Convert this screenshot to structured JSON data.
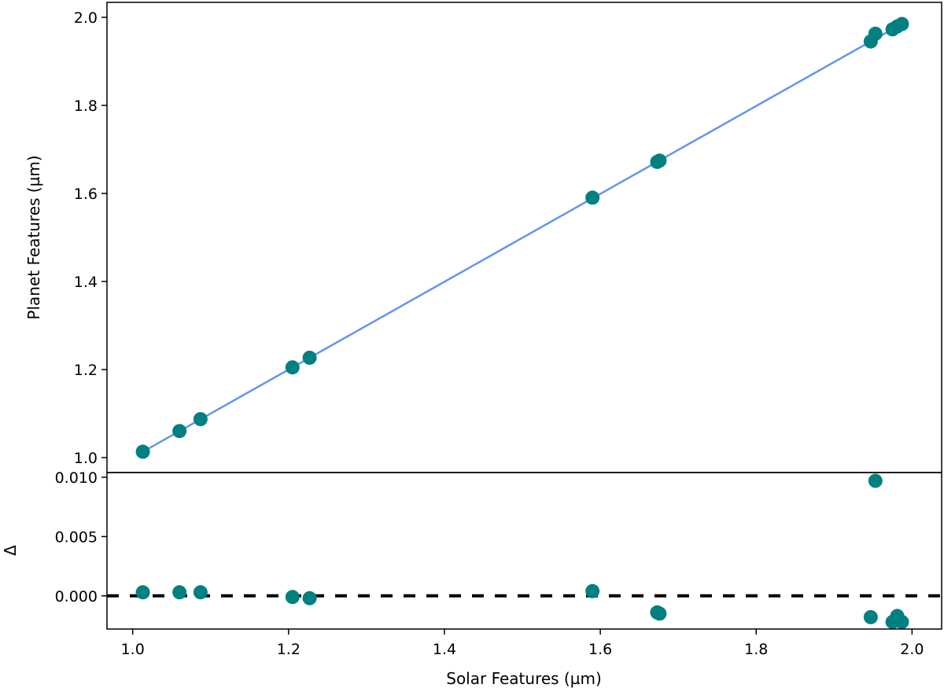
{
  "chart_data": [
    {
      "type": "scatter",
      "panel": "top",
      "xlabel": "",
      "ylabel": "Planet Features (µm)",
      "xlim": [
        0.967,
        2.038
      ],
      "ylim": [
        0.966,
        2.034
      ],
      "yticks": [
        1.0,
        1.2,
        1.4,
        1.6,
        1.8,
        2.0
      ],
      "ytick_labels": [
        "1.0",
        "1.2",
        "1.4",
        "1.6",
        "1.8",
        "2.0"
      ],
      "grid": false,
      "points": {
        "x": [
          1.013,
          1.06,
          1.087,
          1.205,
          1.227,
          1.59,
          1.673,
          1.676,
          1.947,
          1.953,
          1.975,
          1.981,
          1.987
        ],
        "y": [
          1.0133,
          1.0603,
          1.0873,
          1.2049,
          1.2268,
          1.5904,
          1.6716,
          1.6745,
          1.9452,
          1.9627,
          1.9728,
          1.9793,
          1.9848
        ],
        "color": "#008080"
      },
      "fit_line": {
        "x": [
          1.013,
          1.987
        ],
        "y": [
          1.0132,
          1.9852
        ],
        "color": "#6495ED"
      }
    },
    {
      "type": "scatter",
      "panel": "bottom",
      "xlabel": "Solar Features (µm)",
      "ylabel": "Δ",
      "xlim": [
        0.967,
        2.038
      ],
      "ylim": [
        -0.0028,
        0.0104
      ],
      "xticks": [
        1.0,
        1.2,
        1.4,
        1.6,
        1.8,
        2.0
      ],
      "xtick_labels": [
        "1.0",
        "1.2",
        "1.4",
        "1.6",
        "1.8",
        "2.0"
      ],
      "yticks": [
        0.0,
        0.005,
        0.01
      ],
      "ytick_labels": [
        "0.000",
        "0.005",
        "0.010"
      ],
      "grid": false,
      "points": {
        "x": [
          1.013,
          1.06,
          1.087,
          1.205,
          1.227,
          1.59,
          1.673,
          1.676,
          1.947,
          1.953,
          1.975,
          1.981,
          1.987
        ],
        "y": [
          0.0003,
          0.0003,
          0.0003,
          -0.0001,
          -0.0002,
          0.0004,
          -0.0014,
          -0.0015,
          -0.0018,
          0.0097,
          -0.0022,
          -0.0017,
          -0.0022
        ],
        "color": "#008080"
      },
      "reference_line": {
        "y": 0.0,
        "style": "dashed",
        "color": "#000000"
      }
    }
  ]
}
